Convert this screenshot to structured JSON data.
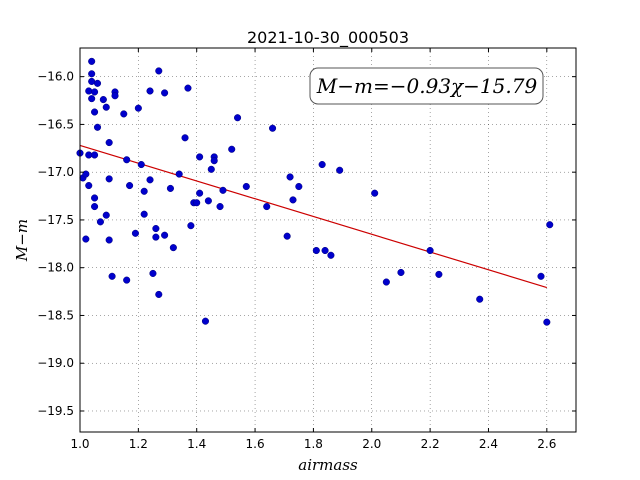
{
  "chart_data": {
    "type": "scatter",
    "title": "2021-10-30_000503",
    "xlabel": "airmass",
    "ylabel": "M−m",
    "xlim": [
      1.0,
      2.7
    ],
    "ylim": [
      -15.7,
      -19.72
    ],
    "y_axis_inverted": true,
    "x_ticks": [
      1.0,
      1.2,
      1.4,
      1.6,
      1.8,
      2.0,
      2.2,
      2.4,
      2.6
    ],
    "x_tick_labels": [
      "1.0",
      "1.2",
      "1.4",
      "1.6",
      "1.8",
      "2.0",
      "2.2",
      "2.4",
      "2.6"
    ],
    "y_ticks": [
      -16.0,
      -16.5,
      -17.0,
      -17.5,
      -18.0,
      -18.5,
      -19.0,
      -19.5
    ],
    "y_tick_labels": [
      "−16.0",
      "−16.5",
      "−17.0",
      "−17.5",
      "−18.0",
      "−18.5",
      "−19.0",
      "−19.5"
    ],
    "grid": true,
    "annotation": "M−m=−0.93χ−15.79",
    "fit": {
      "slope": -0.93,
      "intercept": -15.79,
      "x_range": [
        1.0,
        2.6
      ],
      "color": "#cc0000"
    },
    "marker_color": "#0000cc",
    "points": [
      [
        1.0,
        -16.8
      ],
      [
        1.01,
        -17.06
      ],
      [
        1.02,
        -17.7
      ],
      [
        1.02,
        -17.02
      ],
      [
        1.03,
        -16.82
      ],
      [
        1.03,
        -17.14
      ],
      [
        1.03,
        -16.15
      ],
      [
        1.04,
        -16.23
      ],
      [
        1.04,
        -15.84
      ],
      [
        1.04,
        -16.05
      ],
      [
        1.04,
        -15.97
      ],
      [
        1.05,
        -16.16
      ],
      [
        1.05,
        -16.37
      ],
      [
        1.05,
        -17.27
      ],
      [
        1.05,
        -17.36
      ],
      [
        1.05,
        -16.82
      ],
      [
        1.06,
        -16.07
      ],
      [
        1.06,
        -16.53
      ],
      [
        1.07,
        -17.52
      ],
      [
        1.08,
        -16.24
      ],
      [
        1.09,
        -16.32
      ],
      [
        1.09,
        -17.45
      ],
      [
        1.1,
        -16.69
      ],
      [
        1.1,
        -17.07
      ],
      [
        1.1,
        -17.71
      ],
      [
        1.11,
        -18.09
      ],
      [
        1.12,
        -16.16
      ],
      [
        1.12,
        -16.2
      ],
      [
        1.15,
        -16.39
      ],
      [
        1.16,
        -16.87
      ],
      [
        1.16,
        -18.13
      ],
      [
        1.17,
        -17.14
      ],
      [
        1.19,
        -17.64
      ],
      [
        1.2,
        -16.33
      ],
      [
        1.21,
        -16.92
      ],
      [
        1.22,
        -17.2
      ],
      [
        1.22,
        -17.44
      ],
      [
        1.24,
        -17.08
      ],
      [
        1.24,
        -16.15
      ],
      [
        1.25,
        -18.06
      ],
      [
        1.26,
        -17.59
      ],
      [
        1.26,
        -17.68
      ],
      [
        1.27,
        -18.28
      ],
      [
        1.27,
        -15.94
      ],
      [
        1.29,
        -16.17
      ],
      [
        1.29,
        -17.66
      ],
      [
        1.31,
        -17.17
      ],
      [
        1.32,
        -17.79
      ],
      [
        1.34,
        -17.02
      ],
      [
        1.36,
        -16.64
      ],
      [
        1.37,
        -16.12
      ],
      [
        1.38,
        -17.56
      ],
      [
        1.39,
        -17.32
      ],
      [
        1.4,
        -17.32
      ],
      [
        1.41,
        -17.22
      ],
      [
        1.41,
        -16.84
      ],
      [
        1.43,
        -18.56
      ],
      [
        1.44,
        -17.3
      ],
      [
        1.45,
        -16.97
      ],
      [
        1.46,
        -16.84
      ],
      [
        1.46,
        -16.88
      ],
      [
        1.48,
        -17.36
      ],
      [
        1.49,
        -17.19
      ],
      [
        1.52,
        -16.76
      ],
      [
        1.54,
        -16.43
      ],
      [
        1.57,
        -17.15
      ],
      [
        1.64,
        -17.36
      ],
      [
        1.66,
        -16.54
      ],
      [
        1.71,
        -17.67
      ],
      [
        1.72,
        -17.05
      ],
      [
        1.73,
        -17.29
      ],
      [
        1.75,
        -17.15
      ],
      [
        1.81,
        -17.82
      ],
      [
        1.83,
        -16.92
      ],
      [
        1.84,
        -17.82
      ],
      [
        1.86,
        -17.87
      ],
      [
        1.89,
        -16.98
      ],
      [
        2.01,
        -17.22
      ],
      [
        2.05,
        -18.15
      ],
      [
        2.1,
        -18.05
      ],
      [
        2.2,
        -17.82
      ],
      [
        2.23,
        -18.07
      ],
      [
        2.37,
        -18.33
      ],
      [
        2.58,
        -18.09
      ],
      [
        2.6,
        -18.57
      ],
      [
        2.61,
        -17.55
      ]
    ]
  }
}
